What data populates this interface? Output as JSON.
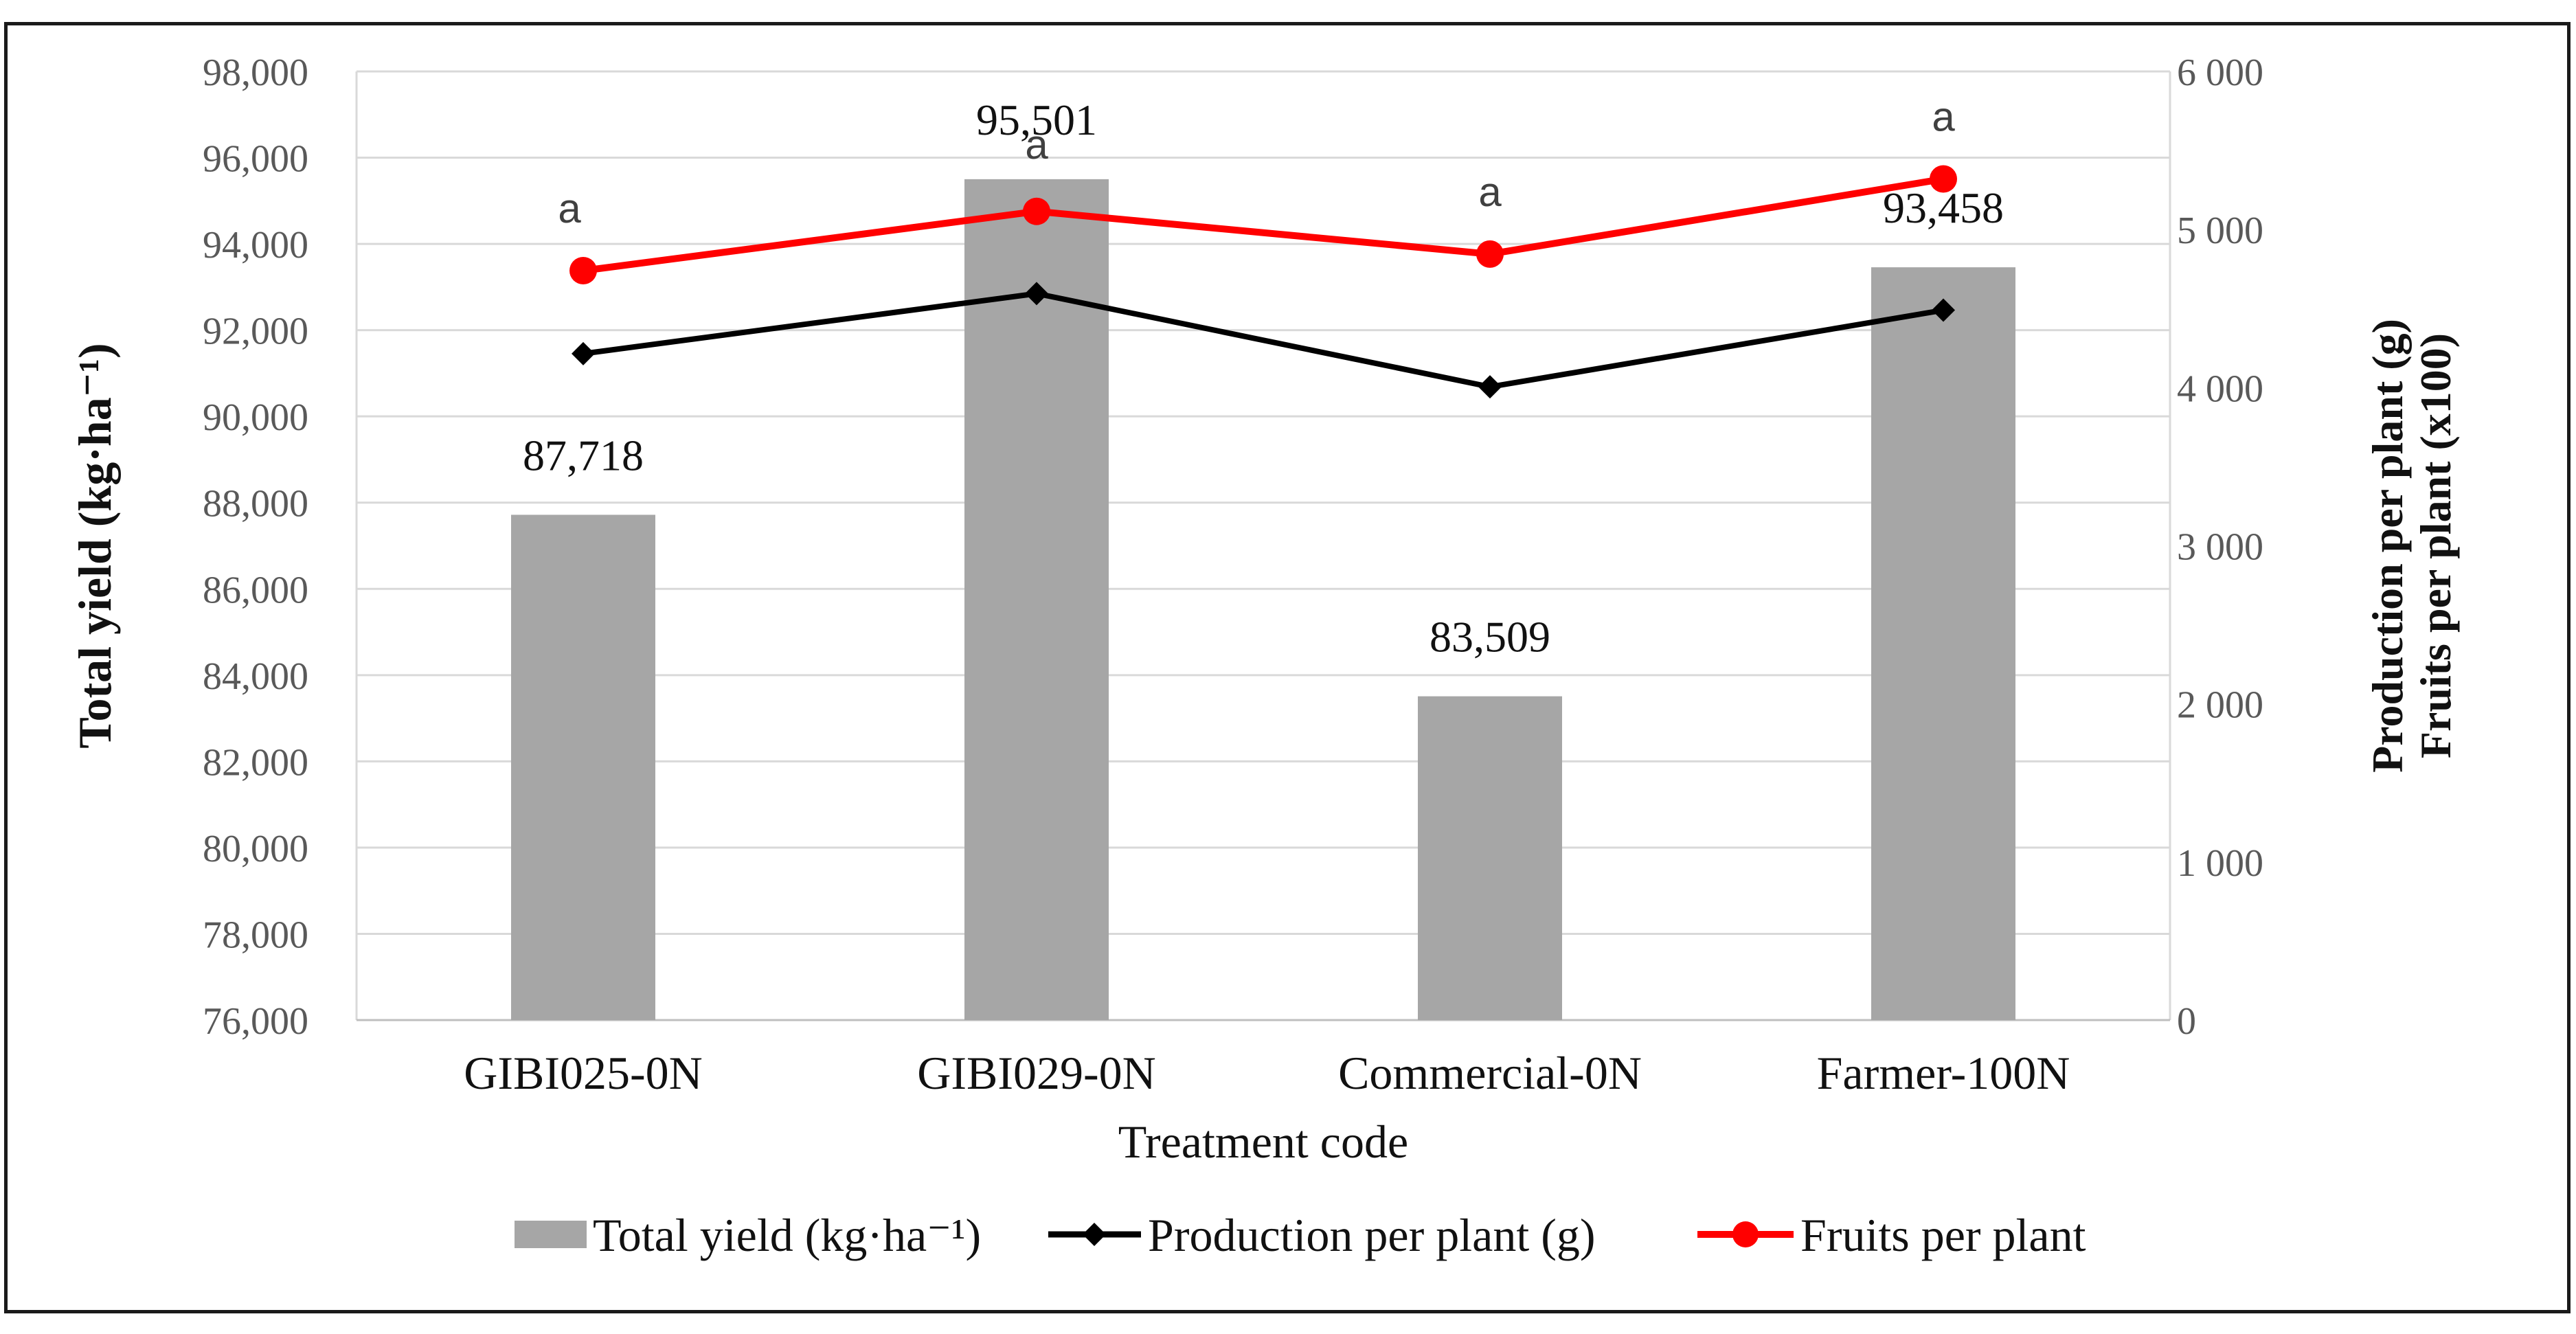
{
  "chart_data": {
    "type": "bar",
    "categories": [
      "GIBI025-0N",
      "GIBI029-0N",
      "Commercial-0N",
      "Farmer-100N"
    ],
    "xlabel": "Treatment code",
    "ylabel_left": "Total yield (kg·ha⁻¹)",
    "ylabel_right": [
      "Production per plant (g)",
      "Fruits per plant (x100)"
    ],
    "y_left": {
      "lim": [
        76000,
        98000
      ],
      "ticks": [
        76000,
        78000,
        80000,
        82000,
        84000,
        86000,
        88000,
        90000,
        92000,
        94000,
        96000,
        98000
      ],
      "tick_labels": [
        "76,000",
        "78,000",
        "80,000",
        "82,000",
        "84,000",
        "86,000",
        "88,000",
        "90,000",
        "92,000",
        "94,000",
        "96,000",
        "98,000"
      ]
    },
    "y_right": {
      "lim": [
        0,
        6000
      ],
      "ticks": [
        0,
        1000,
        2000,
        3000,
        4000,
        5000,
        6000
      ],
      "tick_labels": [
        "0",
        "1 000",
        "2 000",
        "3 000",
        "4 000",
        "5 000",
        "6 000"
      ]
    },
    "grid": true,
    "series": [
      {
        "name": "Total yield (kg·ha⁻¹)",
        "kind": "bar",
        "axis": "left",
        "color": "#a6a6a6",
        "values": [
          87718,
          95501,
          83509,
          93458
        ],
        "value_labels": [
          "87,718",
          "95,501",
          "83,509",
          "93,458"
        ]
      },
      {
        "name": "Production per plant (g)",
        "kind": "line",
        "axis": "right",
        "color": "#000000",
        "marker": "diamond",
        "values": [
          4215,
          4595,
          4005,
          4490
        ]
      },
      {
        "name": "Fruits per plant",
        "kind": "line",
        "axis": "right",
        "color": "#ff0000",
        "marker": "circle",
        "values": [
          4740,
          5115,
          4845,
          5320
        ]
      }
    ],
    "significance_letters": [
      "a",
      "a",
      "a",
      "a"
    ],
    "legend": [
      "Total yield (kg·ha⁻¹)",
      "Production per plant (g)",
      "Fruits per plant"
    ],
    "legend_position": "bottom"
  }
}
